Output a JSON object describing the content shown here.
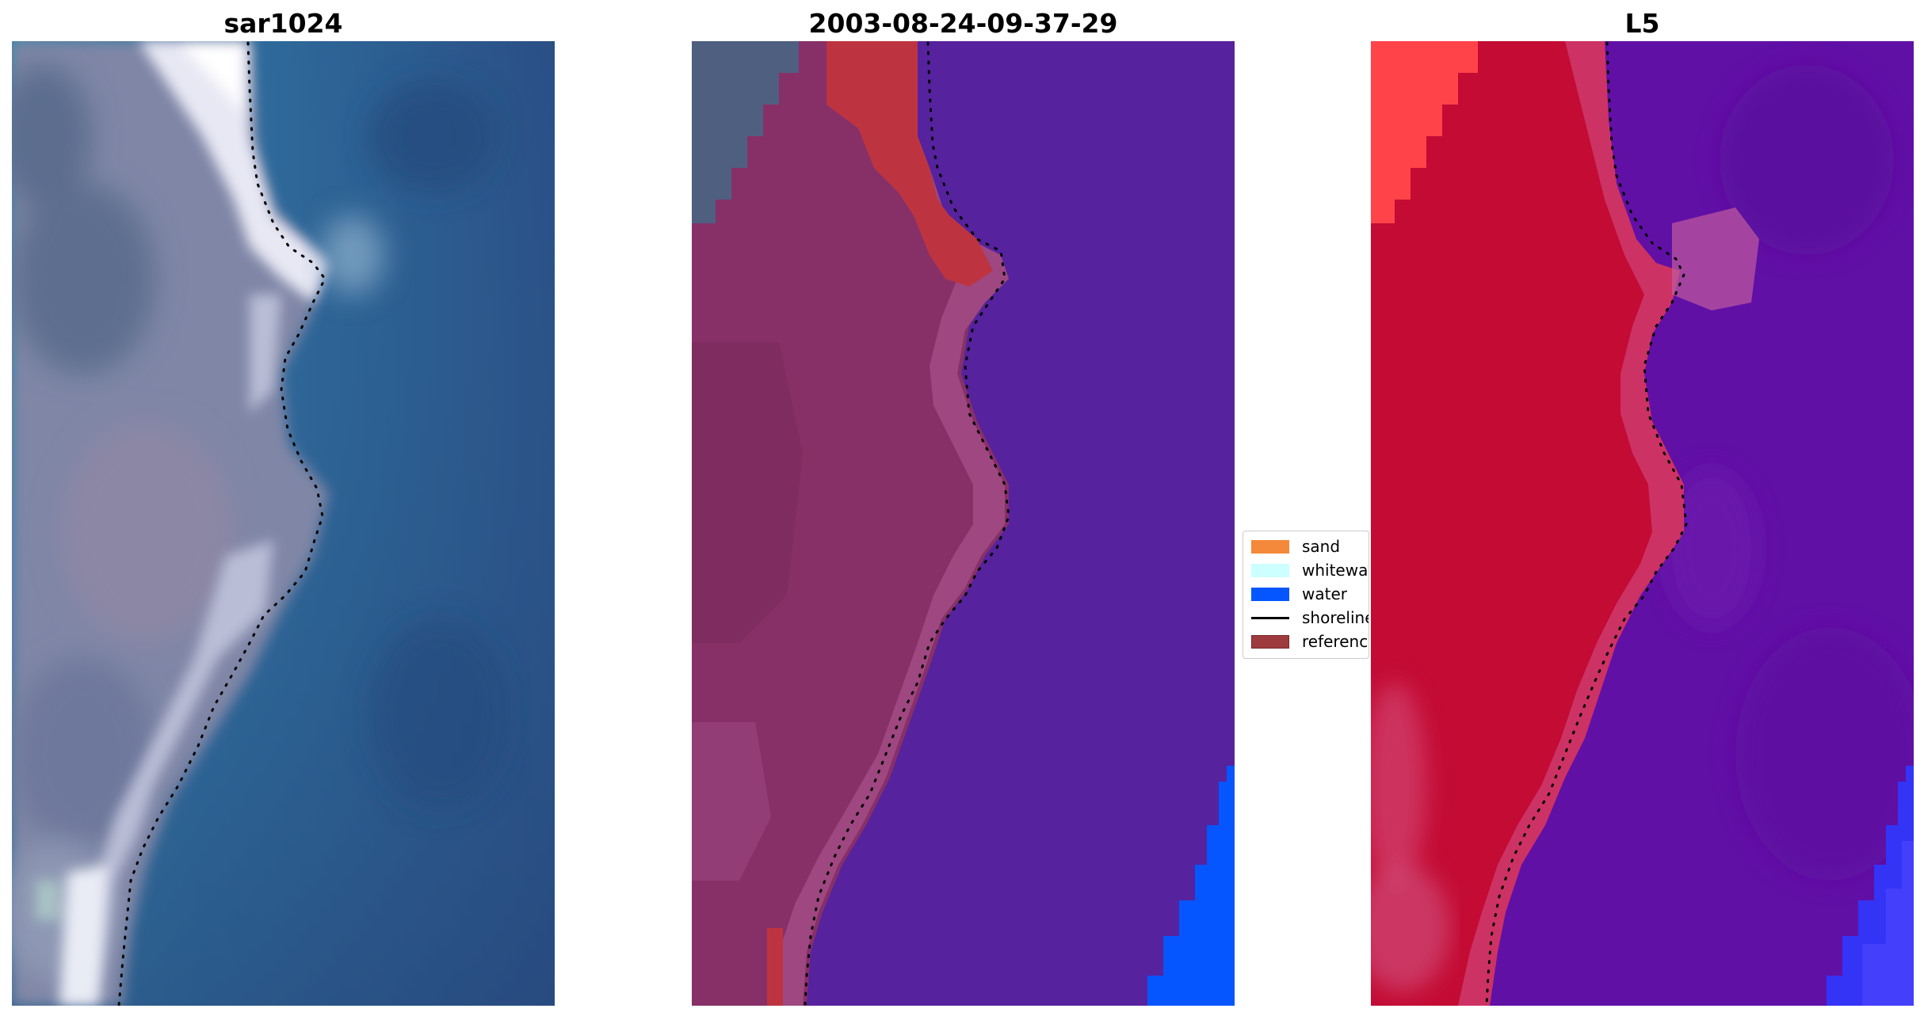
{
  "panels": [
    {
      "title": "sar1024"
    },
    {
      "title": "2003-08-24-09-37-29"
    },
    {
      "title": "L5"
    }
  ],
  "legend": {
    "items": [
      {
        "label": "sand",
        "color": "#f4893b",
        "kind": "patch"
      },
      {
        "label": "whitewater",
        "color": "#ccffff",
        "kind": "patch"
      },
      {
        "label": "water",
        "color": "#0656ff",
        "kind": "patch"
      },
      {
        "label": "shoreline",
        "color": "#000000",
        "kind": "line"
      },
      {
        "label": "reference",
        "color": "#9e3b3e",
        "kind": "patch"
      }
    ]
  },
  "colors": {
    "sand_land": "#873068",
    "water_overlay": "#56229d",
    "reference_overlay": "#bd3440",
    "true_color_water": "#2d5f96",
    "true_color_land": "#7d85a4",
    "probability_land": "#c30b34",
    "probability_water": "#6110a6",
    "probability_water_edge": "#3334f5",
    "shoreline": "#000000"
  }
}
